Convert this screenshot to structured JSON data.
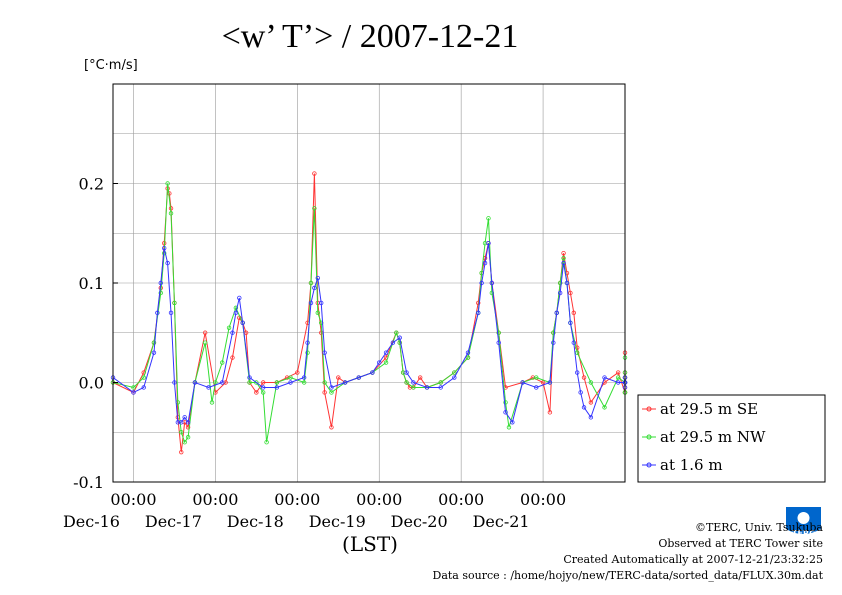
{
  "title": "<w’ T’> / 2007-12-21",
  "unit_label": "[°C·m/s]",
  "xaxis_name": "(LST)",
  "colors": {
    "se": "#ff3333",
    "nw": "#33dd33",
    "m16": "#3333ff",
    "grid": "#999999",
    "logo": "#0066cc"
  },
  "chart_data": {
    "type": "line",
    "title": "<w’ T’> / 2007-12-21",
    "ylabel": "[°C·m/s]",
    "xlabel": "(LST)",
    "xlim": [
      "2007-12-15 18:00",
      "2007-12-21 24:00"
    ],
    "ylim": [
      -0.1,
      0.3
    ],
    "yticks": [
      "-0.1",
      "0.0",
      "0.1",
      "0.2"
    ],
    "xticks": [
      {
        "time": "00:00",
        "date": "Dec-16"
      },
      {
        "time": "00:00",
        "date": "Dec-17"
      },
      {
        "time": "00:00",
        "date": "Dec-18"
      },
      {
        "time": "00:00",
        "date": "Dec-19"
      },
      {
        "time": "00:00",
        "date": "Dec-20"
      },
      {
        "time": "00:00",
        "date": "Dec-21"
      }
    ],
    "grid": true,
    "legend_position": "right",
    "series": [
      {
        "name": "at 29.5 m SE",
        "key": "se",
        "x_hours": [
          0,
          6,
          9,
          12,
          14,
          15,
          16,
          16.5,
          17,
          18,
          19,
          20,
          21,
          22,
          24,
          27,
          30,
          33,
          35,
          37,
          38,
          39,
          40,
          42,
          44,
          48,
          51,
          54,
          57,
          58,
          59,
          60,
          61,
          62,
          64,
          66,
          68,
          72,
          76,
          80,
          83,
          84,
          85,
          86,
          87,
          88,
          90,
          92,
          96,
          100,
          104,
          107,
          108,
          109,
          110,
          111,
          113,
          115,
          120,
          123,
          126,
          128,
          129,
          130,
          131,
          132,
          133,
          134,
          135,
          136,
          138,
          140,
          144,
          148,
          152,
          154,
          155,
          156,
          157,
          158,
          159,
          160,
          162,
          164,
          168
        ],
        "values": [
          0.0,
          -0.01,
          0.01,
          0.04,
          0.095,
          0.14,
          0.195,
          0.19,
          0.175,
          0.08,
          -0.035,
          -0.07,
          -0.04,
          -0.045,
          0.0,
          0.05,
          -0.01,
          0.0,
          0.025,
          0.065,
          0.06,
          0.05,
          0.0,
          -0.01,
          0.0,
          0.0,
          0.005,
          0.01,
          0.06,
          0.1,
          0.21,
          0.08,
          0.05,
          -0.01,
          -0.045,
          0.005,
          0.0,
          0.005,
          0.01,
          0.025,
          0.05,
          0.04,
          0.01,
          0.0,
          -0.005,
          -0.005,
          0.005,
          -0.005,
          0.0,
          0.01,
          0.025,
          0.08,
          0.11,
          0.125,
          0.14,
          0.1,
          0.05,
          -0.005,
          0.0,
          0.005,
          0.0,
          -0.03,
          0.05,
          0.07,
          0.1,
          0.13,
          0.11,
          0.09,
          0.07,
          0.035,
          0.005,
          -0.02,
          0.0,
          0.01,
          -0.01,
          0.0,
          0.005,
          -0.01,
          0.03,
          0.01,
          0.0,
          0.005,
          0.0,
          -0.005,
          0.0
        ]
      },
      {
        "name": "at 29.5 m NW",
        "key": "nw",
        "x_hours": [
          0,
          6,
          9,
          12,
          14,
          15,
          16,
          17,
          18,
          19,
          20,
          21,
          22,
          24,
          27,
          29,
          30,
          32,
          34,
          36,
          38,
          40,
          42,
          44,
          45,
          48,
          52,
          56,
          57,
          58,
          59,
          60,
          61,
          62,
          64,
          68,
          72,
          76,
          80,
          83,
          84,
          85,
          86,
          88,
          92,
          96,
          100,
          104,
          107,
          108,
          109,
          110,
          111,
          113,
          115,
          116,
          120,
          124,
          128,
          129,
          130,
          131,
          132,
          133,
          134,
          136,
          140,
          144,
          148,
          152,
          154,
          155,
          156,
          157,
          158,
          160,
          164,
          168
        ],
        "values": [
          0.0,
          -0.005,
          0.005,
          0.04,
          0.09,
          0.13,
          0.2,
          0.17,
          0.08,
          -0.02,
          -0.05,
          -0.06,
          -0.055,
          0.0,
          0.04,
          -0.02,
          0.0,
          0.02,
          0.055,
          0.075,
          0.06,
          0.0,
          0.0,
          -0.01,
          -0.06,
          0.0,
          0.005,
          0.0,
          0.03,
          0.1,
          0.175,
          0.07,
          0.06,
          0.0,
          -0.01,
          0.0,
          0.005,
          0.01,
          0.02,
          0.05,
          0.04,
          0.01,
          0.0,
          -0.005,
          -0.005,
          0.0,
          0.01,
          0.025,
          0.07,
          0.11,
          0.14,
          0.165,
          0.09,
          0.05,
          -0.02,
          -0.045,
          0.0,
          0.005,
          0.0,
          0.05,
          0.07,
          0.1,
          0.125,
          0.1,
          0.06,
          0.03,
          0.0,
          -0.025,
          0.005,
          0.0,
          0.005,
          -0.01,
          0.025,
          0.01,
          -0.01,
          0.0,
          0.0,
          0.0
        ]
      },
      {
        "name": "at 1.6 m",
        "key": "m16",
        "x_hours": [
          0,
          6,
          9,
          12,
          13,
          14,
          15,
          16,
          17,
          18,
          19,
          20,
          21,
          22,
          24,
          28,
          32,
          35,
          36,
          37,
          38,
          40,
          44,
          48,
          52,
          56,
          57,
          58,
          59,
          60,
          61,
          62,
          64,
          68,
          72,
          76,
          78,
          80,
          82,
          84,
          86,
          88,
          92,
          96,
          100,
          104,
          107,
          108,
          109,
          110,
          111,
          113,
          115,
          117,
          120,
          124,
          128,
          129,
          130,
          131,
          132,
          133,
          134,
          135,
          136,
          137,
          138,
          140,
          144,
          148,
          152,
          154,
          156,
          160,
          164,
          168
        ],
        "values": [
          0.005,
          -0.01,
          -0.005,
          0.03,
          0.07,
          0.1,
          0.135,
          0.12,
          0.07,
          0.0,
          -0.04,
          -0.04,
          -0.035,
          -0.04,
          0.0,
          -0.005,
          0.0,
          0.05,
          0.07,
          0.085,
          0.06,
          0.005,
          -0.005,
          -0.005,
          0.0,
          0.005,
          0.04,
          0.08,
          0.095,
          0.105,
          0.08,
          0.03,
          -0.005,
          0.0,
          0.005,
          0.01,
          0.02,
          0.03,
          0.04,
          0.045,
          0.01,
          0.0,
          -0.005,
          -0.005,
          0.005,
          0.03,
          0.07,
          0.1,
          0.12,
          0.14,
          0.1,
          0.04,
          -0.03,
          -0.04,
          0.0,
          -0.005,
          0.0,
          0.04,
          0.07,
          0.09,
          0.12,
          0.1,
          0.06,
          0.04,
          0.01,
          -0.01,
          -0.025,
          -0.035,
          0.005,
          0.0,
          0.0,
          0.0,
          0.005,
          -0.005,
          0.0,
          0.0
        ]
      }
    ]
  },
  "credits": [
    "©TERC, Univ. Tsukuba",
    "Observed at TERC Tower site",
    "Created Automatically at 2007-12-21/23:32:25",
    "Data source : /home/hojyo/new/TERC-data/sorted_data/FLUX.30m.dat"
  ],
  "logo_text": "TERC"
}
